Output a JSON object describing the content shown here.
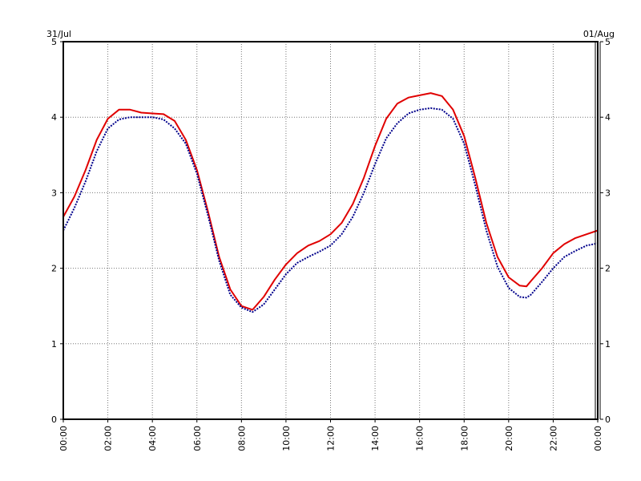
{
  "chart_data": {
    "type": "line",
    "title": "",
    "xlabel": "",
    "ylabel": "",
    "date_left": "31/Jul",
    "date_right": "01/Aug",
    "xlim": [
      0,
      24
    ],
    "ylim": [
      0,
      5
    ],
    "grid": true,
    "x_ticks": [
      0,
      2,
      4,
      6,
      8,
      10,
      12,
      14,
      16,
      18,
      20,
      22,
      24
    ],
    "x_tick_labels": [
      "00:00",
      "02:00",
      "04:00",
      "06:00",
      "08:00",
      "10:00",
      "12:00",
      "14:00",
      "16:00",
      "18:00",
      "20:00",
      "22:00",
      "00:00"
    ],
    "y_ticks": [
      0,
      1,
      2,
      3,
      4,
      5
    ],
    "y_tick_labels": [
      "0",
      "1",
      "2",
      "3",
      "4",
      "5"
    ],
    "series": [
      {
        "color": "#e00000",
        "style": "solid",
        "x": [
          0,
          0.5,
          1,
          1.5,
          2,
          2.5,
          3,
          3.5,
          4,
          4.5,
          5,
          5.5,
          6,
          6.5,
          7,
          7.5,
          8,
          8.5,
          9,
          9.5,
          10,
          10.5,
          11,
          11.5,
          12,
          12.5,
          13,
          13.5,
          14,
          14.5,
          15,
          15.5,
          16,
          16.5,
          17,
          17.5,
          18,
          18.5,
          19,
          19.5,
          20,
          20.5,
          20.8,
          21,
          21.5,
          22,
          22.5,
          23,
          23.5,
          24
        ],
        "y": [
          2.68,
          2.95,
          3.3,
          3.7,
          3.98,
          4.1,
          4.1,
          4.06,
          4.05,
          4.04,
          3.95,
          3.7,
          3.3,
          2.75,
          2.15,
          1.72,
          1.5,
          1.45,
          1.62,
          1.85,
          2.05,
          2.2,
          2.3,
          2.36,
          2.45,
          2.6,
          2.85,
          3.2,
          3.62,
          3.98,
          4.18,
          4.26,
          4.29,
          4.32,
          4.28,
          4.1,
          3.75,
          3.2,
          2.6,
          2.15,
          1.88,
          1.77,
          1.76,
          1.83,
          2.0,
          2.2,
          2.32,
          2.4,
          2.45,
          2.5
        ]
      },
      {
        "color": "#00008b",
        "style": "dotted",
        "x": [
          0,
          0.5,
          1,
          1.5,
          2,
          2.5,
          3,
          3.5,
          4,
          4.5,
          5,
          5.5,
          6,
          6.5,
          7,
          7.5,
          8,
          8.5,
          9,
          9.5,
          10,
          10.5,
          11,
          11.5,
          12,
          12.5,
          13,
          13.5,
          14,
          14.5,
          15,
          15.5,
          16,
          16.5,
          17,
          17.5,
          18,
          18.5,
          19,
          19.5,
          20,
          20.5,
          20.8,
          21,
          21.5,
          22,
          22.5,
          23,
          23.5,
          24
        ],
        "y": [
          2.5,
          2.8,
          3.15,
          3.55,
          3.85,
          3.97,
          4.0,
          4.0,
          4.0,
          3.97,
          3.85,
          3.65,
          3.25,
          2.7,
          2.1,
          1.65,
          1.48,
          1.42,
          1.52,
          1.72,
          1.92,
          2.07,
          2.15,
          2.22,
          2.3,
          2.45,
          2.68,
          3.0,
          3.38,
          3.72,
          3.92,
          4.05,
          4.1,
          4.12,
          4.1,
          3.98,
          3.65,
          3.1,
          2.5,
          2.02,
          1.74,
          1.62,
          1.61,
          1.65,
          1.82,
          2.0,
          2.15,
          2.23,
          2.3,
          2.33
        ]
      }
    ]
  }
}
